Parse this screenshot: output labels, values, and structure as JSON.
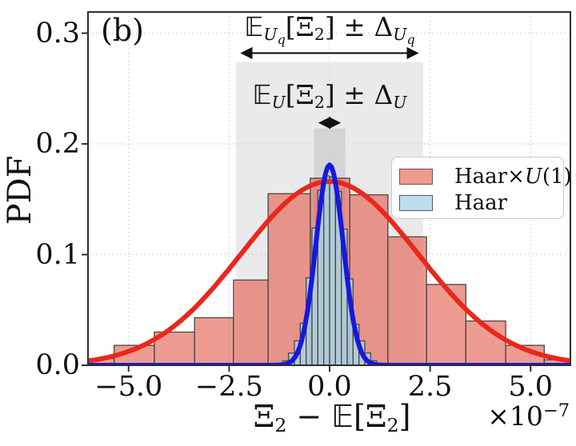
{
  "figure": {
    "panel_label": "(b)"
  },
  "colors": {
    "hist_haar_u1_fill": "#e2594a",
    "hist_haar_fill": "#a8d3e4",
    "bar_edge": "#474747",
    "curve_red": "#e8281b",
    "curve_blue": "#1818dd",
    "band_gray": "rgba(60,60,60,0.105)",
    "inner_band_gray": "rgba(60,60,60,0.12)",
    "grid": "#cccccc",
    "spine": "#2f2f2f",
    "text": "#111111"
  },
  "axes": {
    "ylabel": "PDF",
    "xlabel_parts": {
      "xi": "Ξ",
      "sub": "2",
      "minus": " − ",
      "E": "𝔼",
      "open": "[",
      "xi2": "Ξ",
      "sub2": "2",
      "close": "]"
    },
    "offset": {
      "base": "×10",
      "exp": "−7"
    },
    "yticks": [
      {
        "label": "0.0",
        "value": 0.0
      },
      {
        "label": "0.1",
        "value": 0.1
      },
      {
        "label": "0.2",
        "value": 0.2
      },
      {
        "label": "0.3",
        "value": 0.3
      }
    ],
    "xticks": [
      {
        "label": "−5.0",
        "value": -5.0
      },
      {
        "label": "−2.5",
        "value": -2.5
      },
      {
        "label": "0.0",
        "value": 0.0
      },
      {
        "label": "2.5",
        "value": 2.5
      },
      {
        "label": "5.0",
        "value": 5.0
      }
    ]
  },
  "annotations": {
    "uq": {
      "E": "𝔼",
      "U": "U",
      "q": "q",
      "open": "[",
      "xi": "Ξ",
      "two": "2",
      "close": "]",
      "pm": " ± ",
      "delta": "Δ",
      "U2": "U",
      "q2": "q"
    },
    "u": {
      "E": "𝔼",
      "U": "U",
      "open": "[",
      "xi": "Ξ",
      "two": "2",
      "close": "]",
      "pm": " ± ",
      "delta": "Δ",
      "U2": "U"
    }
  },
  "legend": {
    "items": [
      {
        "pre": "Haar",
        "times": "×",
        "u": "U",
        "post": "(1)",
        "swatch_style": "background:#ee9a8e;border:1.5px solid #5a5a5a;"
      },
      {
        "pre": "Haar",
        "times": "",
        "u": "",
        "post": "",
        "swatch_style": "background:#bddcec;border:1.5px solid #5a5a5a;"
      }
    ]
  },
  "chart_data": {
    "type": "histogram+line",
    "x_unit": "1e-7",
    "xlabel": "Xi_2 - E[Xi_2]",
    "ylabel": "PDF",
    "xlim": [
      -6.0,
      6.0
    ],
    "ylim": [
      0,
      0.319
    ],
    "xticks": [
      -5.0,
      -2.5,
      0.0,
      2.5,
      5.0
    ],
    "yticks": [
      0.0,
      0.1,
      0.2,
      0.3
    ],
    "grid": true,
    "legend_position": "center right",
    "series": [
      {
        "name": "Haar×U(1)",
        "kind": "bars",
        "fill": "#e2594a",
        "fill_opacity": 0.6,
        "edge": "#474747",
        "bars": [
          [
            -6.02,
            -5.36,
            0.006
          ],
          [
            -5.36,
            -4.36,
            0.018
          ],
          [
            -4.36,
            -3.36,
            0.03
          ],
          [
            -3.36,
            -2.39,
            0.043
          ],
          [
            -2.39,
            -1.53,
            0.077
          ],
          [
            -1.53,
            -0.48,
            0.155
          ],
          [
            -0.48,
            0.5,
            0.169
          ],
          [
            0.5,
            1.45,
            0.154
          ],
          [
            1.45,
            2.41,
            0.116
          ],
          [
            2.41,
            3.39,
            0.073
          ],
          [
            3.39,
            4.38,
            0.04
          ],
          [
            4.38,
            5.34,
            0.018
          ],
          [
            5.34,
            6.0,
            0.005
          ]
        ]
      },
      {
        "name": "Haar",
        "kind": "bars",
        "fill": "#a8d3e4",
        "fill_opacity": 0.85,
        "edge": "#474747",
        "bars": [
          [
            -1.168,
            -1.022,
            0.004
          ],
          [
            -1.022,
            -0.876,
            0.011
          ],
          [
            -0.876,
            -0.73,
            0.022
          ],
          [
            -0.73,
            -0.584,
            0.038
          ],
          [
            -0.584,
            -0.438,
            0.079
          ],
          [
            -0.438,
            -0.292,
            0.124
          ],
          [
            -0.292,
            -0.146,
            0.158
          ],
          [
            -0.146,
            0.0,
            0.171
          ],
          [
            0.0,
            0.146,
            0.17
          ],
          [
            0.146,
            0.292,
            0.157
          ],
          [
            0.292,
            0.438,
            0.123
          ],
          [
            0.438,
            0.584,
            0.078
          ],
          [
            0.584,
            0.73,
            0.037
          ],
          [
            0.73,
            0.876,
            0.022
          ],
          [
            0.876,
            1.022,
            0.011
          ],
          [
            1.022,
            1.168,
            0.004
          ]
        ]
      },
      {
        "name": "Haar×U(1) gaussian fit",
        "kind": "gaussian",
        "color": "#e8281b",
        "mu": 0,
        "sigma": 2.2,
        "peak": 0.166,
        "line_width": 6
      },
      {
        "name": "Haar gaussian fit",
        "kind": "gaussian",
        "color": "#1818dd",
        "mu": 0,
        "sigma": 0.34,
        "peak": 0.181,
        "line_width": 6
      }
    ],
    "bands": [
      {
        "name": "E_Uq[Xi_2] ± Delta_Uq",
        "x0": -2.33,
        "x1": 2.33,
        "y_top": 0.274,
        "color": "rgba(60,60,60,0.105)"
      },
      {
        "name": "E_U[Xi_2] ± Delta_U",
        "x0": -0.39,
        "x1": 0.39,
        "y_top": 0.214,
        "color": "rgba(60,60,60,0.12)"
      }
    ],
    "arrows": [
      {
        "x0": -2.31,
        "x1": 2.31,
        "y": 0.282
      },
      {
        "x0": -0.37,
        "x1": 0.37,
        "y": 0.219
      }
    ]
  }
}
